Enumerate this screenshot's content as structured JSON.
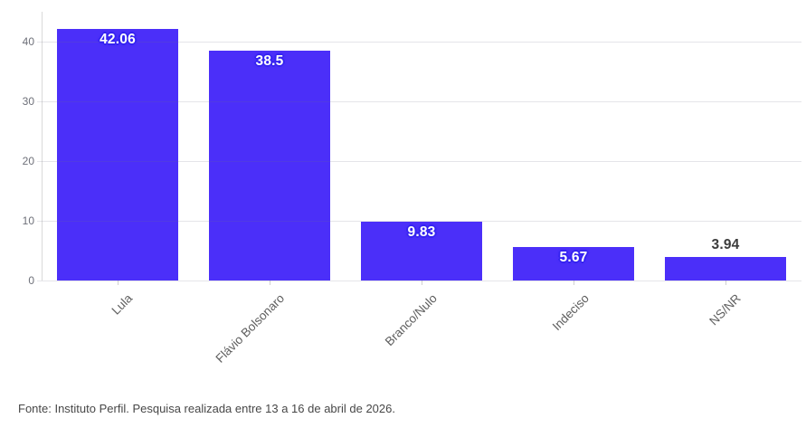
{
  "chart": {
    "source_note": "Fonte: Instituto Perfil. Pesquisa realizada entre 13 a 16 de abril de 2026."
  },
  "chart_data": {
    "type": "bar",
    "title": "",
    "xlabel": "",
    "ylabel": "",
    "categories": [
      "Lula",
      "Flávio Bolsonaro",
      "Branco/Nulo",
      "Indeciso",
      "NS/NR"
    ],
    "values": [
      42.06,
      38.5,
      9.83,
      5.67,
      3.94
    ],
    "value_labels": [
      "42.06",
      "38.5",
      "9.83",
      "5.67",
      "3.94"
    ],
    "value_label_placement": [
      "inside",
      "inside",
      "inside",
      "inside",
      "above"
    ],
    "ylim": [
      0,
      45
    ],
    "yticks": [
      0,
      10,
      20,
      30,
      40
    ],
    "ytick_labels": [
      "0",
      "10",
      "20",
      "30",
      "40"
    ],
    "grid": true,
    "legend": false,
    "colors": {
      "bar": "#4B2FF9",
      "value_label_text": "#FFFFFF",
      "value_label_outline": "#3523F0",
      "value_label_above_text": "#3C3C3C",
      "axis_line": "#D9D9D9",
      "gridline": "rgba(110,110,135,0.18)",
      "y_tick_label": "#6E7079",
      "x_tick_label": "#5E5E5E",
      "source_text": "#474747"
    }
  }
}
